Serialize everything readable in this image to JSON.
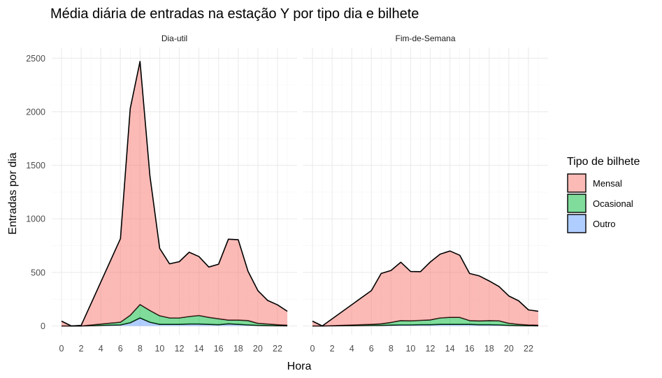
{
  "chart_data": {
    "type": "area",
    "title": "Média diária de entradas na estação Y por tipo dia e bilhete",
    "xlabel": "Hora",
    "ylabel": "Entradas por dia",
    "ylim": [
      0,
      2500
    ],
    "y_ticks": [
      0,
      500,
      1000,
      1500,
      2000,
      2500
    ],
    "y_tick_labels": [
      "0",
      "500",
      "1000",
      "1500",
      "2000",
      "2500"
    ],
    "x_ticks": [
      0,
      2,
      4,
      6,
      8,
      10,
      12,
      14,
      16,
      18,
      20,
      22
    ],
    "x_tick_labels": [
      "0",
      "2",
      "4",
      "6",
      "8",
      "10",
      "12",
      "14",
      "16",
      "18",
      "20",
      "22"
    ],
    "xlim": [
      0,
      23
    ],
    "stacked": true,
    "grid": true,
    "legend": {
      "title": "Tipo de bilhete",
      "position": "right",
      "entries": [
        {
          "name": "Mensal",
          "color": "#F8766D"
        },
        {
          "name": "Ocasional",
          "color": "#00BA38"
        },
        {
          "name": "Outro",
          "color": "#619CFF"
        }
      ]
    },
    "panels": [
      {
        "name": "Dia-util",
        "hours": [
          0,
          1,
          2,
          6,
          7,
          8,
          9,
          10,
          11,
          12,
          13,
          14,
          15,
          16,
          17,
          18,
          19,
          20,
          21,
          22,
          23
        ],
        "series": [
          {
            "name": "Outro",
            "values": [
              0,
              0,
              0,
              10,
              30,
              75,
              35,
              15,
              15,
              15,
              18,
              18,
              15,
              12,
              20,
              15,
              10,
              5,
              3,
              2,
              1
            ]
          },
          {
            "name": "Ocasional",
            "values": [
              0,
              0,
              0,
              25,
              70,
              125,
              110,
              80,
              60,
              60,
              70,
              80,
              65,
              55,
              35,
              40,
              40,
              20,
              15,
              10,
              6
            ]
          },
          {
            "name": "Mensal",
            "values": [
              45,
              0,
              5,
              780,
              1930,
              2270,
              1260,
              630,
              505,
              525,
              600,
              550,
              470,
              510,
              755,
              750,
              460,
              305,
              220,
              185,
              130
            ]
          }
        ]
      },
      {
        "name": "Fim-de-Semana",
        "hours": [
          0,
          1,
          6,
          7,
          8,
          9,
          10,
          11,
          12,
          13,
          14,
          15,
          16,
          17,
          18,
          19,
          20,
          21,
          22,
          23
        ],
        "series": [
          {
            "name": "Outro",
            "values": [
              0,
              0,
              5,
              5,
              8,
              10,
              10,
              12,
              12,
              15,
              15,
              15,
              15,
              12,
              12,
              10,
              5,
              3,
              2,
              1
            ]
          },
          {
            "name": "Ocasional",
            "values": [
              0,
              0,
              10,
              15,
              25,
              40,
              38,
              40,
              45,
              60,
              65,
              65,
              35,
              35,
              38,
              38,
              20,
              12,
              8,
              6
            ]
          },
          {
            "name": "Mensal",
            "values": [
              45,
              0,
              315,
              470,
              485,
              545,
              460,
              455,
              540,
              595,
              620,
              580,
              440,
              420,
              370,
              320,
              255,
              220,
              140,
              130
            ]
          }
        ]
      }
    ]
  }
}
